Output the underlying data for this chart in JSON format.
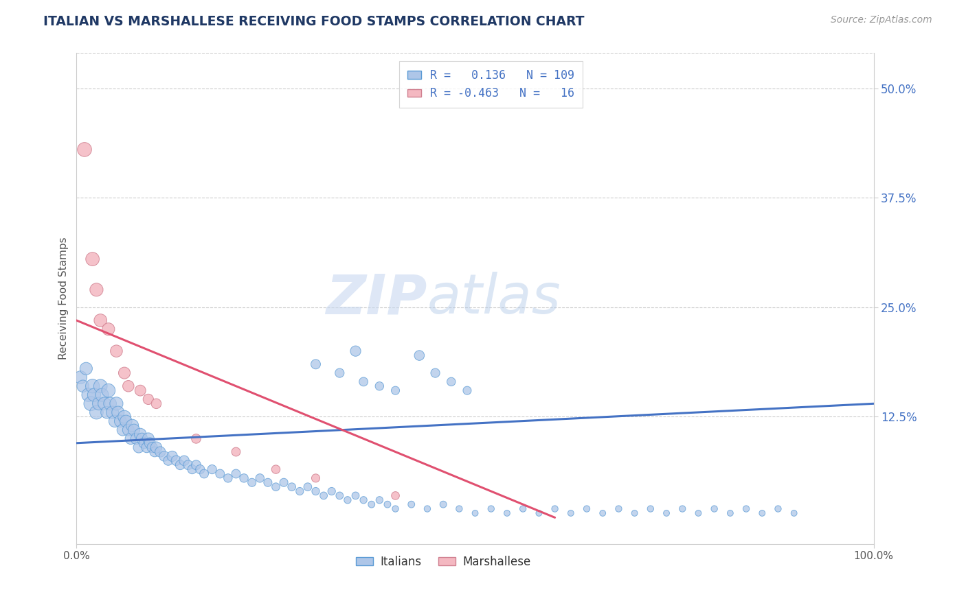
{
  "title": "ITALIAN VS MARSHALLESE RECEIVING FOOD STAMPS CORRELATION CHART",
  "source": "Source: ZipAtlas.com",
  "ylabel": "Receiving Food Stamps",
  "xlim": [
    0,
    1
  ],
  "ylim": [
    -0.02,
    0.54
  ],
  "yticks": [
    0.125,
    0.25,
    0.375,
    0.5
  ],
  "ytick_labels": [
    "12.5%",
    "25.0%",
    "37.5%",
    "50.0%"
  ],
  "xticks": [
    0.0,
    1.0
  ],
  "xtick_labels": [
    "0.0%",
    "100.0%"
  ],
  "legend_R_italian": " 0.136",
  "legend_N_italian": "109",
  "legend_R_marshallese": "-0.463",
  "legend_N_marshallese": " 16",
  "italian_color": "#aec6e8",
  "italian_edge": "#5b9bd5",
  "marshallese_color": "#f4b8c1",
  "marshallese_edge": "#d08090",
  "watermark1": "ZIP",
  "watermark2": "atlas",
  "background_color": "#ffffff",
  "italian_x": [
    0.005,
    0.008,
    0.012,
    0.015,
    0.018,
    0.02,
    0.022,
    0.025,
    0.028,
    0.03,
    0.032,
    0.035,
    0.038,
    0.04,
    0.042,
    0.045,
    0.048,
    0.05,
    0.052,
    0.055,
    0.058,
    0.06,
    0.062,
    0.065,
    0.068,
    0.07,
    0.072,
    0.075,
    0.078,
    0.08,
    0.082,
    0.085,
    0.088,
    0.09,
    0.092,
    0.095,
    0.098,
    0.1,
    0.105,
    0.11,
    0.115,
    0.12,
    0.125,
    0.13,
    0.135,
    0.14,
    0.145,
    0.15,
    0.155,
    0.16,
    0.17,
    0.18,
    0.19,
    0.2,
    0.21,
    0.22,
    0.23,
    0.24,
    0.25,
    0.26,
    0.27,
    0.28,
    0.29,
    0.3,
    0.31,
    0.32,
    0.33,
    0.34,
    0.35,
    0.36,
    0.37,
    0.38,
    0.39,
    0.4,
    0.42,
    0.44,
    0.46,
    0.48,
    0.5,
    0.52,
    0.54,
    0.56,
    0.58,
    0.6,
    0.62,
    0.64,
    0.66,
    0.68,
    0.7,
    0.72,
    0.74,
    0.76,
    0.78,
    0.8,
    0.82,
    0.84,
    0.86,
    0.88,
    0.9,
    0.3,
    0.33,
    0.36,
    0.38,
    0.4,
    0.43,
    0.45,
    0.47,
    0.49,
    0.35
  ],
  "italian_y": [
    0.17,
    0.16,
    0.18,
    0.15,
    0.14,
    0.16,
    0.15,
    0.13,
    0.14,
    0.16,
    0.15,
    0.14,
    0.13,
    0.155,
    0.14,
    0.13,
    0.12,
    0.14,
    0.13,
    0.12,
    0.11,
    0.125,
    0.12,
    0.11,
    0.1,
    0.115,
    0.11,
    0.1,
    0.09,
    0.105,
    0.1,
    0.095,
    0.09,
    0.1,
    0.095,
    0.09,
    0.085,
    0.09,
    0.085,
    0.08,
    0.075,
    0.08,
    0.075,
    0.07,
    0.075,
    0.07,
    0.065,
    0.07,
    0.065,
    0.06,
    0.065,
    0.06,
    0.055,
    0.06,
    0.055,
    0.05,
    0.055,
    0.05,
    0.045,
    0.05,
    0.045,
    0.04,
    0.045,
    0.04,
    0.035,
    0.04,
    0.035,
    0.03,
    0.035,
    0.03,
    0.025,
    0.03,
    0.025,
    0.02,
    0.025,
    0.02,
    0.025,
    0.02,
    0.015,
    0.02,
    0.015,
    0.02,
    0.015,
    0.02,
    0.015,
    0.02,
    0.015,
    0.02,
    0.015,
    0.02,
    0.015,
    0.02,
    0.015,
    0.02,
    0.015,
    0.02,
    0.015,
    0.02,
    0.015,
    0.185,
    0.175,
    0.165,
    0.16,
    0.155,
    0.195,
    0.175,
    0.165,
    0.155,
    0.2
  ],
  "italian_size": [
    180,
    160,
    170,
    200,
    220,
    210,
    190,
    200,
    180,
    200,
    190,
    180,
    160,
    200,
    180,
    170,
    160,
    190,
    170,
    160,
    150,
    180,
    160,
    150,
    140,
    170,
    150,
    140,
    130,
    160,
    140,
    130,
    120,
    150,
    130,
    120,
    110,
    140,
    120,
    110,
    100,
    120,
    110,
    100,
    110,
    100,
    90,
    100,
    90,
    85,
    90,
    85,
    80,
    85,
    80,
    75,
    80,
    75,
    70,
    75,
    70,
    65,
    70,
    65,
    60,
    65,
    60,
    55,
    60,
    55,
    50,
    55,
    50,
    45,
    50,
    45,
    50,
    45,
    40,
    45,
    40,
    45,
    40,
    45,
    40,
    45,
    40,
    45,
    40,
    45,
    40,
    45,
    40,
    45,
    40,
    45,
    40,
    45,
    40,
    100,
    90,
    85,
    80,
    75,
    110,
    90,
    80,
    75,
    120
  ],
  "marshallese_x": [
    0.01,
    0.02,
    0.025,
    0.03,
    0.04,
    0.05,
    0.06,
    0.065,
    0.08,
    0.09,
    0.1,
    0.15,
    0.2,
    0.25,
    0.3,
    0.4
  ],
  "marshallese_y": [
    0.43,
    0.305,
    0.27,
    0.235,
    0.225,
    0.2,
    0.175,
    0.16,
    0.155,
    0.145,
    0.14,
    0.1,
    0.085,
    0.065,
    0.055,
    0.035
  ],
  "marshallese_size": [
    220,
    200,
    190,
    180,
    170,
    160,
    150,
    140,
    130,
    120,
    110,
    95,
    85,
    80,
    75,
    70
  ],
  "title_color": "#1f3864",
  "axis_label_color": "#555555",
  "tick_color_right": "#4472c4",
  "tick_color_bottom": "#555555",
  "regression_italian_color": "#4472c4",
  "regression_marshallese_color": "#e05070",
  "regression_italian_x0": 0.0,
  "regression_italian_x1": 1.0,
  "regression_italian_y0": 0.095,
  "regression_italian_y1": 0.14,
  "regression_marshallese_x0": 0.0,
  "regression_marshallese_x1": 0.6,
  "regression_marshallese_y0": 0.235,
  "regression_marshallese_y1": 0.01,
  "grid_color": "#cccccc",
  "spine_color": "#cccccc"
}
